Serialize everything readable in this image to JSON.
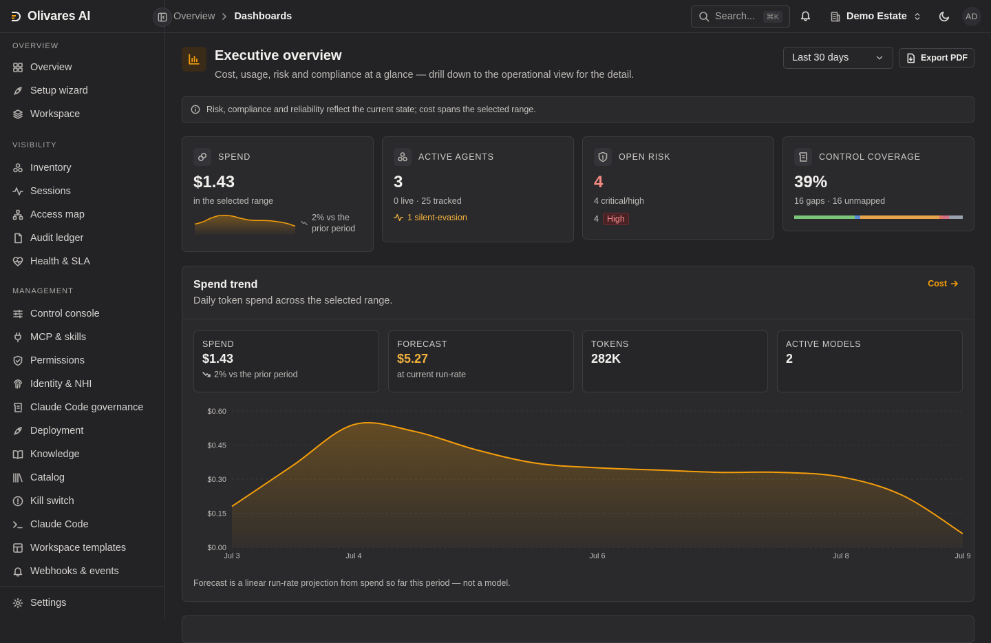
{
  "app": {
    "name": "Olivares AI"
  },
  "sidebar": {
    "sections": [
      {
        "heading": "OVERVIEW",
        "items": [
          {
            "label": "Overview",
            "icon": "grid-icon"
          },
          {
            "label": "Setup wizard",
            "icon": "rocket-icon"
          },
          {
            "label": "Workspace",
            "icon": "layers-icon"
          }
        ]
      },
      {
        "heading": "VISIBILITY",
        "items": [
          {
            "label": "Inventory",
            "icon": "boxes-icon"
          },
          {
            "label": "Sessions",
            "icon": "activity-icon"
          },
          {
            "label": "Access map",
            "icon": "network-icon"
          },
          {
            "label": "Audit ledger",
            "icon": "file-icon"
          },
          {
            "label": "Health & SLA",
            "icon": "heart-pulse-icon"
          }
        ]
      },
      {
        "heading": "MANAGEMENT",
        "items": [
          {
            "label": "Control console",
            "icon": "sliders-icon"
          },
          {
            "label": "MCP & skills",
            "icon": "plug-icon"
          },
          {
            "label": "Permissions",
            "icon": "shield-check-icon"
          },
          {
            "label": "Identity & NHI",
            "icon": "fingerprint-icon"
          },
          {
            "label": "Claude Code governance",
            "icon": "scroll-icon"
          },
          {
            "label": "Deployment",
            "icon": "rocket-icon"
          },
          {
            "label": "Knowledge",
            "icon": "book-icon"
          },
          {
            "label": "Catalog",
            "icon": "library-icon"
          },
          {
            "label": "Kill switch",
            "icon": "power-icon"
          },
          {
            "label": "Claude Code",
            "icon": "terminal-icon"
          },
          {
            "label": "Workspace templates",
            "icon": "template-icon"
          },
          {
            "label": "Webhooks & events",
            "icon": "bell-icon"
          }
        ]
      }
    ],
    "settings_label": "Settings"
  },
  "topbar": {
    "breadcrumb": [
      "Overview",
      "Dashboards"
    ],
    "search_placeholder": "Search...",
    "search_shortcut": "⌘K",
    "org": "Demo Estate",
    "avatar_initials": "AD"
  },
  "page": {
    "title": "Executive overview",
    "subtitle": "Cost, usage, risk and compliance at a glance — drill down to the operational view for the detail.",
    "range": "Last 30 days",
    "export_label": "Export PDF",
    "notice": "Risk, compliance and reliability reflect the current state; cost spans the selected range."
  },
  "kpis": {
    "spend": {
      "label": "SPEND",
      "value": "$1.43",
      "sub": "in the selected range",
      "delta": "2% vs the prior period",
      "sparkline": [
        0.18,
        0.22,
        0.29,
        0.34,
        0.35,
        0.33,
        0.29,
        0.26,
        0.25,
        0.25,
        0.24,
        0.22,
        0.19,
        0.14
      ]
    },
    "agents": {
      "label": "ACTIVE AGENTS",
      "value": "3",
      "sub": "0 live · 25 tracked",
      "foot": "1 silent-evasion",
      "foot_color": "#f2b23c"
    },
    "risk": {
      "label": "OPEN RISK",
      "value": "4",
      "value_color": "#f28a82",
      "sub": "4 critical/high",
      "count": "4",
      "badge": "High"
    },
    "coverage": {
      "label": "CONTROL COVERAGE",
      "value": "39%",
      "sub": "16 gaps · 16 unmapped",
      "segments": [
        {
          "share": 0.36,
          "color": "#7cc47a"
        },
        {
          "share": 0.03,
          "color": "#5b8ad6"
        },
        {
          "share": 0.47,
          "color": "#e8a44a"
        },
        {
          "share": 0.02,
          "color": "#e0746a"
        },
        {
          "share": 0.04,
          "color": "#d66f86"
        },
        {
          "share": 0.08,
          "color": "#9aa0ad"
        }
      ]
    }
  },
  "trend": {
    "title": "Spend trend",
    "desc": "Daily token spend across the selected range.",
    "link": "Cost",
    "stats": [
      {
        "label": "SPEND",
        "value": "$1.43",
        "sub": "2% vs the prior period"
      },
      {
        "label": "FORECAST",
        "value": "$5.27",
        "sub": "at current run-rate",
        "value_color": "#f2b23c"
      },
      {
        "label": "TOKENS",
        "value": "282K",
        "sub": ""
      },
      {
        "label": "ACTIVE MODELS",
        "value": "2",
        "sub": ""
      }
    ],
    "note": "Forecast is a linear run-rate projection from spend so far this period — not a model."
  },
  "colors": {
    "accent": "#f59e0b",
    "danger": "#f28a82",
    "warning": "#f2b23c"
  },
  "chart_data": {
    "type": "area",
    "title": "Spend trend",
    "xlabel": "",
    "ylabel": "",
    "x_ticks": [
      "Jul 3",
      "Jul 4",
      "Jul 6",
      "Jul 8",
      "Jul 9"
    ],
    "y_ticks": [
      "$0.00",
      "$0.15",
      "$0.30",
      "$0.45",
      "$0.60"
    ],
    "ylim": [
      0,
      0.6
    ],
    "series": [
      {
        "values": [
          {
            "x": 3.0,
            "y": 0.18
          },
          {
            "x": 3.5,
            "y": 0.36
          },
          {
            "x": 4.0,
            "y": 0.54
          },
          {
            "x": 4.5,
            "y": 0.51
          },
          {
            "x": 5.0,
            "y": 0.43
          },
          {
            "x": 5.5,
            "y": 0.37
          },
          {
            "x": 6.0,
            "y": 0.35
          },
          {
            "x": 6.5,
            "y": 0.34
          },
          {
            "x": 7.0,
            "y": 0.33
          },
          {
            "x": 7.5,
            "y": 0.33
          },
          {
            "x": 8.0,
            "y": 0.31
          },
          {
            "x": 8.5,
            "y": 0.23
          },
          {
            "x": 9.0,
            "y": 0.06
          }
        ]
      }
    ],
    "grid": true,
    "legend": "none",
    "color": "#f59e0b"
  }
}
